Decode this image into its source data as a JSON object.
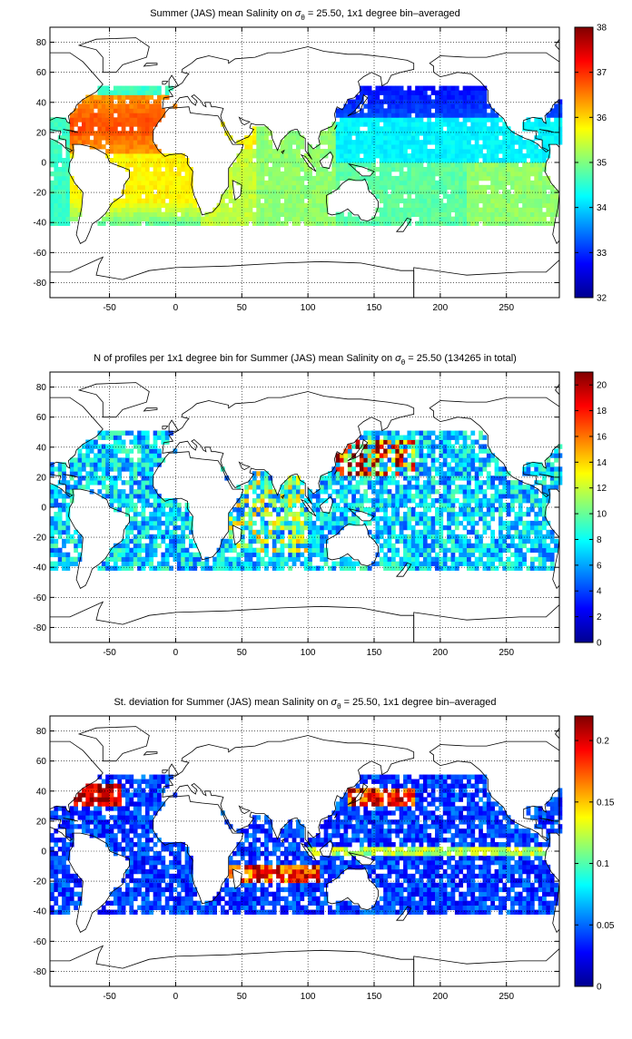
{
  "chart_data": [
    {
      "type": "heatmap",
      "title_parts": [
        "Summer (JAS) mean Salinity on ",
        "σ",
        "θ",
        " = 25.50, 1x1 degree bin–averaged"
      ],
      "xlim": [
        -95,
        290
      ],
      "ylim": [
        -90,
        90
      ],
      "x_ticks": [
        -50,
        0,
        50,
        100,
        150,
        200,
        250
      ],
      "y_ticks": [
        -80,
        -60,
        -40,
        -20,
        0,
        20,
        40,
        60,
        80
      ],
      "colorbar": {
        "min": 32,
        "max": 38,
        "ticks": [
          32,
          33,
          34,
          35,
          36,
          37,
          38
        ],
        "colormap": "jet"
      },
      "grid": true,
      "field": "salinity"
    },
    {
      "type": "heatmap",
      "title_parts": [
        "N of profiles per 1x1 degree bin for Summer (JAS) mean Salinity on ",
        "σ",
        "θ",
        " = 25.50 (134265 in total)"
      ],
      "xlim": [
        -95,
        290
      ],
      "ylim": [
        -90,
        90
      ],
      "x_ticks": [
        -50,
        0,
        50,
        100,
        150,
        200,
        250
      ],
      "y_ticks": [
        -80,
        -60,
        -40,
        -20,
        0,
        20,
        40,
        60,
        80
      ],
      "colorbar": {
        "min": 0,
        "max": 21,
        "ticks": [
          0,
          2,
          4,
          6,
          8,
          10,
          12,
          14,
          16,
          18,
          20
        ],
        "colormap": "jet"
      },
      "grid": true,
      "field": "count",
      "total_profiles": 134265
    },
    {
      "type": "heatmap",
      "title_parts": [
        "St. deviation for Summer (JAS) mean Salinity on ",
        "σ",
        "θ",
        " = 25.50, 1x1 degree bin–averaged"
      ],
      "xlim": [
        -95,
        290
      ],
      "ylim": [
        -90,
        90
      ],
      "x_ticks": [
        -50,
        0,
        50,
        100,
        150,
        200,
        250
      ],
      "y_ticks": [
        -80,
        -60,
        -40,
        -20,
        0,
        20,
        40,
        60,
        80
      ],
      "colorbar": {
        "min": 0,
        "max": 0.22,
        "ticks": [
          0,
          0.05,
          0.1,
          0.15,
          0.2
        ],
        "colormap": "jet"
      },
      "grid": true,
      "field": "stdev"
    }
  ]
}
